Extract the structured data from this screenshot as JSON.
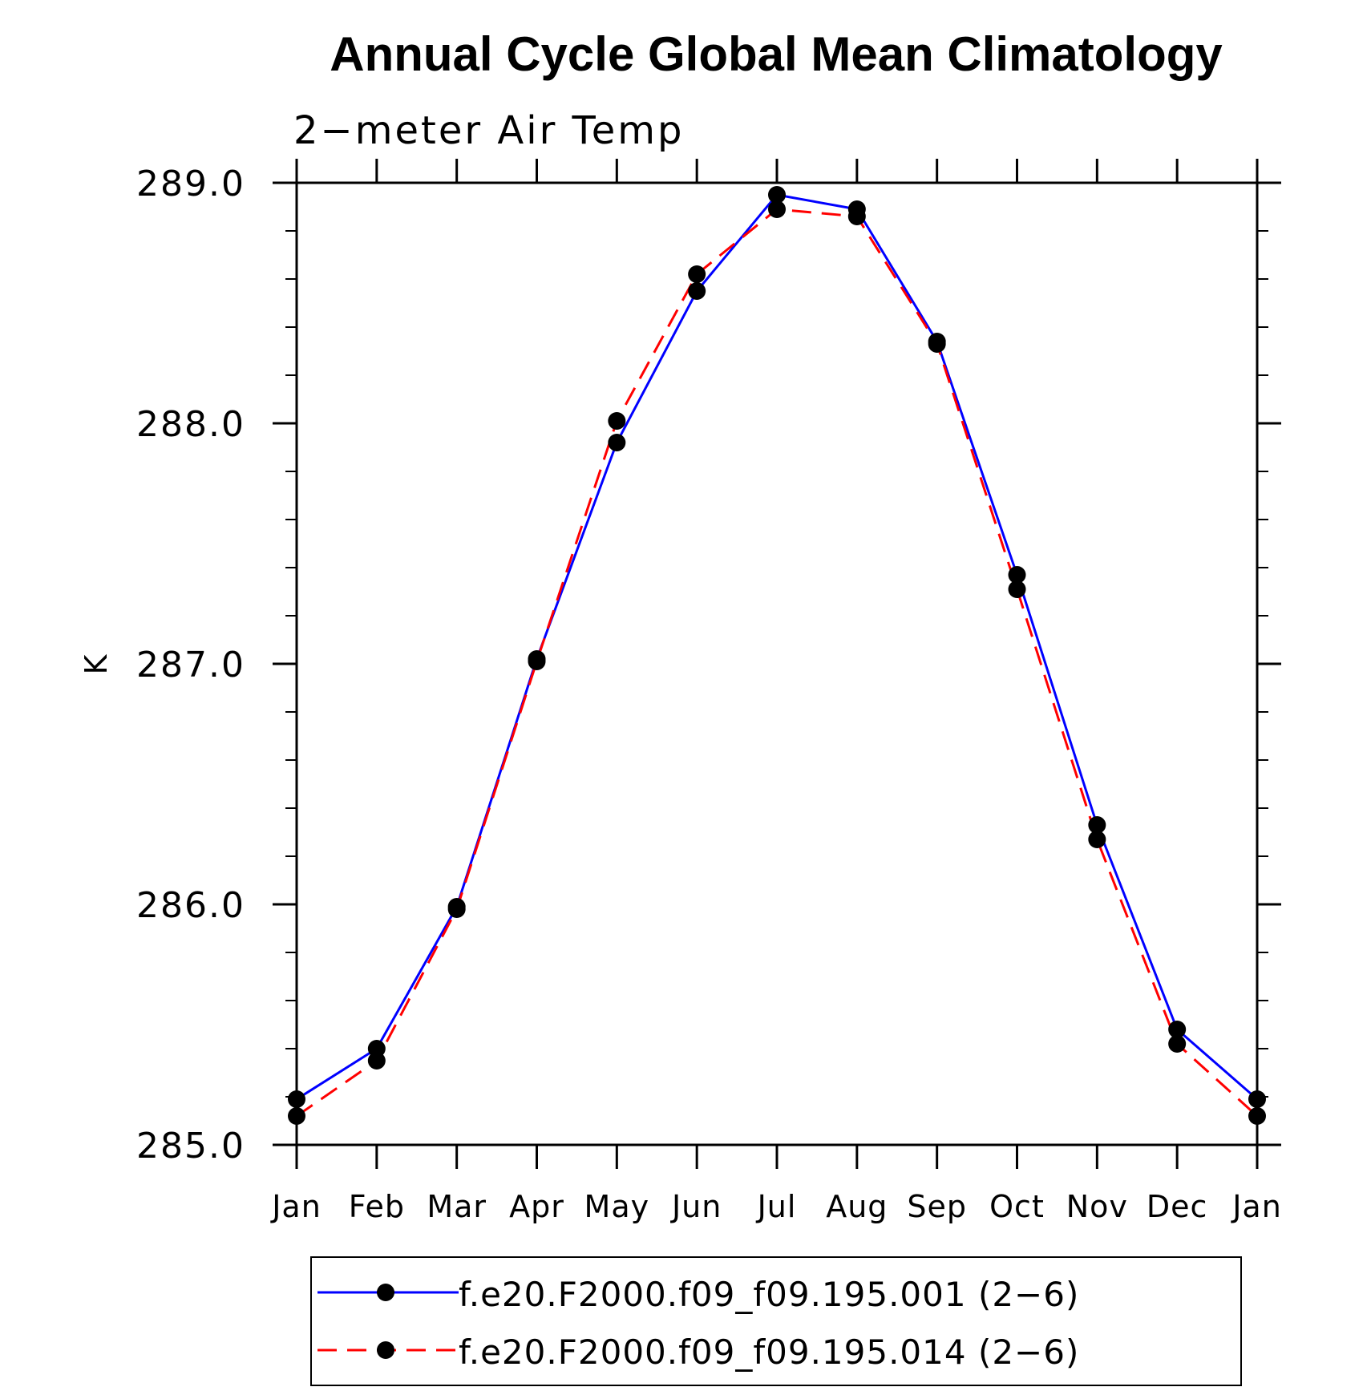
{
  "chart_data": {
    "type": "line",
    "title": "Annual Cycle Global Mean Climatology",
    "subtitle": "2−meter Air Temp",
    "ylabel": "K",
    "ylim": [
      285.0,
      289.0
    ],
    "y_ticks": [
      "285.0",
      "286.0",
      "287.0",
      "288.0",
      "289.0"
    ],
    "categories": [
      "Jan",
      "Feb",
      "Mar",
      "Apr",
      "May",
      "Jun",
      "Jul",
      "Aug",
      "Sep",
      "Oct",
      "Nov",
      "Dec",
      "Jan"
    ],
    "grid": false,
    "legend_position": "bottom",
    "series": [
      {
        "name": "f.e20.F2000.f09_f09.195.001 (2−6)",
        "color": "#0000ff",
        "line_style": "solid",
        "marker": "filled-circle",
        "values": [
          285.19,
          285.4,
          285.99,
          287.02,
          287.92,
          288.55,
          288.95,
          288.89,
          288.34,
          287.37,
          286.33,
          285.48,
          285.19
        ]
      },
      {
        "name": "f.e20.F2000.f09_f09.195.014 (2−6)",
        "color": "#ff0000",
        "line_style": "dashed",
        "marker": "filled-circle",
        "values": [
          285.12,
          285.35,
          285.98,
          287.01,
          288.01,
          288.62,
          288.89,
          288.86,
          288.33,
          287.31,
          286.27,
          285.42,
          285.12
        ]
      }
    ]
  }
}
